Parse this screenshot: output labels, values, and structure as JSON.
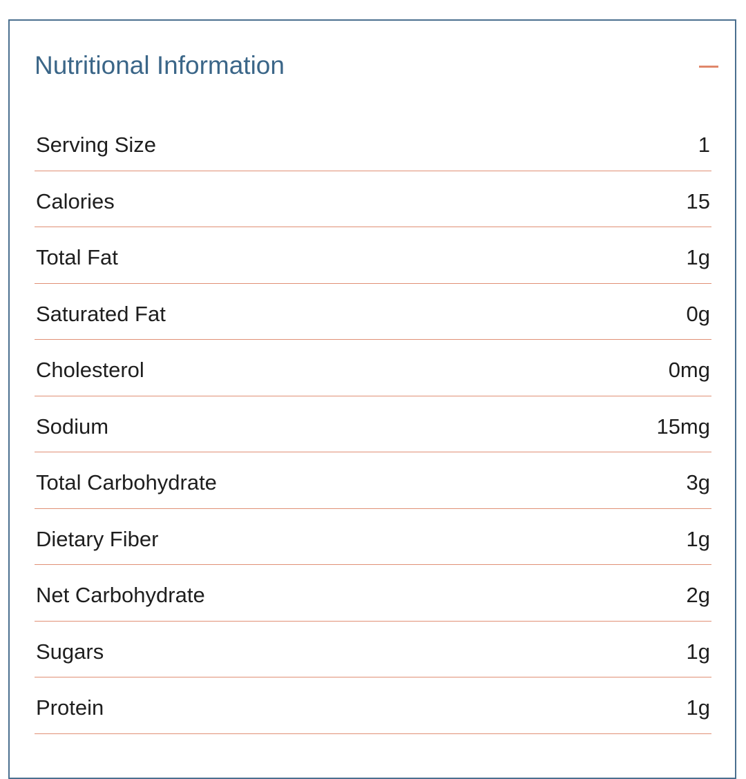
{
  "panel": {
    "title": "Nutritional Information",
    "toggle_icon": "minus-icon",
    "accent_color": "#e0876a",
    "title_color": "#3b6688",
    "border_color": "#4a6f8f"
  },
  "rows": [
    {
      "label": "Serving Size",
      "value": "1"
    },
    {
      "label": "Calories",
      "value": "15"
    },
    {
      "label": "Total Fat",
      "value": "1g"
    },
    {
      "label": "Saturated Fat",
      "value": "0g"
    },
    {
      "label": "Cholesterol",
      "value": "0mg"
    },
    {
      "label": "Sodium",
      "value": "15mg"
    },
    {
      "label": "Total Carbohydrate",
      "value": "3g"
    },
    {
      "label": "Dietary Fiber",
      "value": "1g"
    },
    {
      "label": "Net Carbohydrate",
      "value": "2g"
    },
    {
      "label": "Sugars",
      "value": "1g"
    },
    {
      "label": "Protein",
      "value": "1g"
    }
  ]
}
